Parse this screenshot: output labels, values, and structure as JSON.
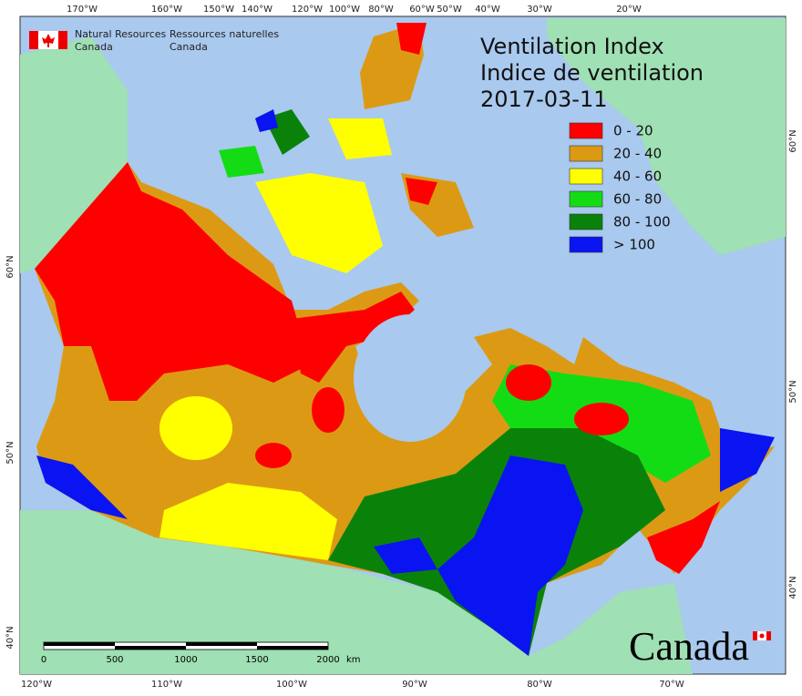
{
  "header": {
    "agency_en": [
      "Natural Resources",
      "Canada"
    ],
    "agency_fr": [
      "Ressources naturelles",
      "Canada"
    ]
  },
  "title": [
    "Ventilation Index",
    "Indice de ventilation",
    "2017-03-11"
  ],
  "legend": [
    {
      "label": "0 - 20",
      "color": "#ff0000"
    },
    {
      "label": "20 - 40",
      "color": "#dc9a14"
    },
    {
      "label": "40 - 60",
      "color": "#ffff00"
    },
    {
      "label": "60 - 80",
      "color": "#14dc14"
    },
    {
      "label": "80 - 100",
      "color": "#0a820a"
    },
    {
      "label": "> 100",
      "color": "#0a14f0"
    }
  ],
  "top_labels": [
    "170°W",
    "160°W",
    "150°W",
    "140°W",
    "120°W",
    "100°W",
    "80°W",
    "60°W",
    "50°W",
    "40°W",
    "30°W",
    "20°W"
  ],
  "bottom_labels": [
    "120°W",
    "110°W",
    "100°W",
    "90°W",
    "80°W",
    "70°W"
  ],
  "left_labels": [
    "60°N",
    "50°N",
    "40°N"
  ],
  "right_labels": [
    "60°N",
    "50°N",
    "40°N"
  ],
  "scale": {
    "labels": [
      "0",
      "500",
      "1000",
      "1500",
      "2000"
    ],
    "unit": "km"
  },
  "wordmark": "Canada"
}
